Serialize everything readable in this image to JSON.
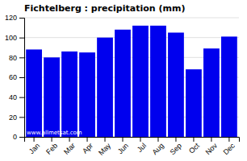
{
  "chart_data": {
    "type": "bar",
    "title": "Fichtelberg : precipitation (mm)",
    "categories": [
      "Jan",
      "Feb",
      "Mar",
      "Apr",
      "May",
      "Jun",
      "Jul",
      "Aug",
      "Sep",
      "Oct",
      "Nov",
      "Dec"
    ],
    "values": [
      88,
      80,
      86,
      85,
      100,
      108,
      112,
      112,
      105,
      68,
      89,
      101
    ],
    "color": "#0000EE",
    "ylim": [
      0,
      120
    ],
    "yticks": [
      0,
      20,
      40,
      60,
      80,
      100,
      120
    ],
    "grid": true,
    "annotation": "www.allmetsat.com"
  }
}
